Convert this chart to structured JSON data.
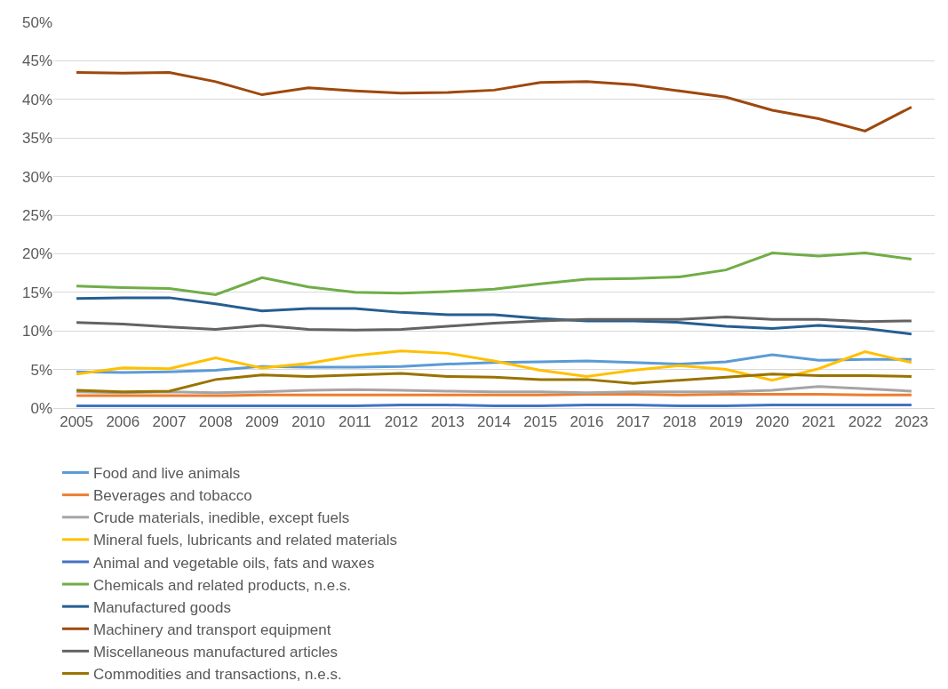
{
  "chart_data": {
    "type": "line",
    "categories": [
      "2005",
      "2006",
      "2007",
      "2008",
      "2009",
      "2010",
      "2011",
      "2012",
      "2013",
      "2014",
      "2015",
      "2016",
      "2017",
      "2018",
      "2019",
      "2020",
      "2021",
      "2022",
      "2023"
    ],
    "ylim": [
      0,
      50
    ],
    "yticks": [
      {
        "value": 0,
        "label": "0%"
      },
      {
        "value": 5,
        "label": "5%"
      },
      {
        "value": 10,
        "label": "10%"
      },
      {
        "value": 15,
        "label": "15%"
      },
      {
        "value": 20,
        "label": "20%"
      },
      {
        "value": 25,
        "label": "25%"
      },
      {
        "value": 30,
        "label": "30%"
      },
      {
        "value": 35,
        "label": "35%"
      },
      {
        "value": 40,
        "label": "40%"
      },
      {
        "value": 45,
        "label": "45%"
      },
      {
        "value": 50,
        "label": "50%"
      }
    ],
    "grid": "y",
    "legend": "bottom",
    "marker": "none",
    "line_style": "solid",
    "series": [
      {
        "name": "Food and live animals",
        "color": "#5b9bd5",
        "values": [
          4.7,
          4.6,
          4.7,
          4.9,
          5.4,
          5.3,
          5.3,
          5.4,
          5.7,
          5.9,
          6.0,
          6.1,
          5.9,
          5.7,
          6.0,
          6.9,
          6.2,
          6.3,
          6.3
        ]
      },
      {
        "name": "Beverages and tobacco",
        "color": "#ed7d31",
        "values": [
          1.6,
          1.6,
          1.6,
          1.6,
          1.7,
          1.7,
          1.7,
          1.7,
          1.7,
          1.7,
          1.7,
          1.8,
          1.8,
          1.7,
          1.8,
          1.8,
          1.8,
          1.7,
          1.7
        ]
      },
      {
        "name": "Crude materials, inedible, except fuels",
        "color": "#a5a5a5",
        "values": [
          2.1,
          2.0,
          2.1,
          2.0,
          2.1,
          2.3,
          2.4,
          2.3,
          2.2,
          2.1,
          2.1,
          2.0,
          2.1,
          2.1,
          2.1,
          2.3,
          2.8,
          2.5,
          2.2
        ]
      },
      {
        "name": "Mineral fuels, lubricants and related materials",
        "color": "#ffc000",
        "values": [
          4.4,
          5.2,
          5.1,
          6.5,
          5.2,
          5.8,
          6.8,
          7.4,
          7.1,
          6.1,
          4.9,
          4.1,
          4.9,
          5.5,
          5.0,
          3.6,
          5.1,
          7.3,
          5.9
        ]
      },
      {
        "name": "Animal and vegetable oils, fats and waxes",
        "color": "#4472c4",
        "values": [
          0.3,
          0.3,
          0.3,
          0.3,
          0.3,
          0.3,
          0.3,
          0.4,
          0.4,
          0.3,
          0.3,
          0.4,
          0.4,
          0.3,
          0.3,
          0.4,
          0.4,
          0.4,
          0.4
        ]
      },
      {
        "name": "Chemicals and related products, n.e.s.",
        "color": "#70ad47",
        "values": [
          15.8,
          15.6,
          15.5,
          14.7,
          16.9,
          15.7,
          15.0,
          14.9,
          15.1,
          15.4,
          16.1,
          16.7,
          16.8,
          17.0,
          17.9,
          20.1,
          19.7,
          20.1,
          19.3
        ]
      },
      {
        "name": "Manufactured goods",
        "color": "#255e91",
        "values": [
          14.2,
          14.3,
          14.3,
          13.5,
          12.6,
          12.9,
          12.9,
          12.4,
          12.1,
          12.1,
          11.6,
          11.3,
          11.3,
          11.1,
          10.6,
          10.3,
          10.7,
          10.3,
          9.6
        ]
      },
      {
        "name": "Machinery and transport equipment",
        "color": "#9e480e",
        "values": [
          43.5,
          43.4,
          43.5,
          42.3,
          40.6,
          41.5,
          41.1,
          40.8,
          40.9,
          41.2,
          42.2,
          42.3,
          41.9,
          41.1,
          40.3,
          38.6,
          37.5,
          35.9,
          39.0
        ]
      },
      {
        "name": "Miscellaneous manufactured articles",
        "color": "#636363",
        "values": [
          11.1,
          10.9,
          10.5,
          10.2,
          10.7,
          10.2,
          10.1,
          10.2,
          10.6,
          11.0,
          11.3,
          11.5,
          11.5,
          11.5,
          11.8,
          11.5,
          11.5,
          11.2,
          11.3
        ]
      },
      {
        "name": "Commodities and transactions, n.e.s.",
        "color": "#997300",
        "values": [
          2.3,
          2.1,
          2.2,
          3.7,
          4.3,
          4.1,
          4.3,
          4.5,
          4.1,
          4.0,
          3.7,
          3.7,
          3.2,
          3.6,
          4.0,
          4.4,
          4.2,
          4.2,
          4.1
        ]
      }
    ]
  }
}
